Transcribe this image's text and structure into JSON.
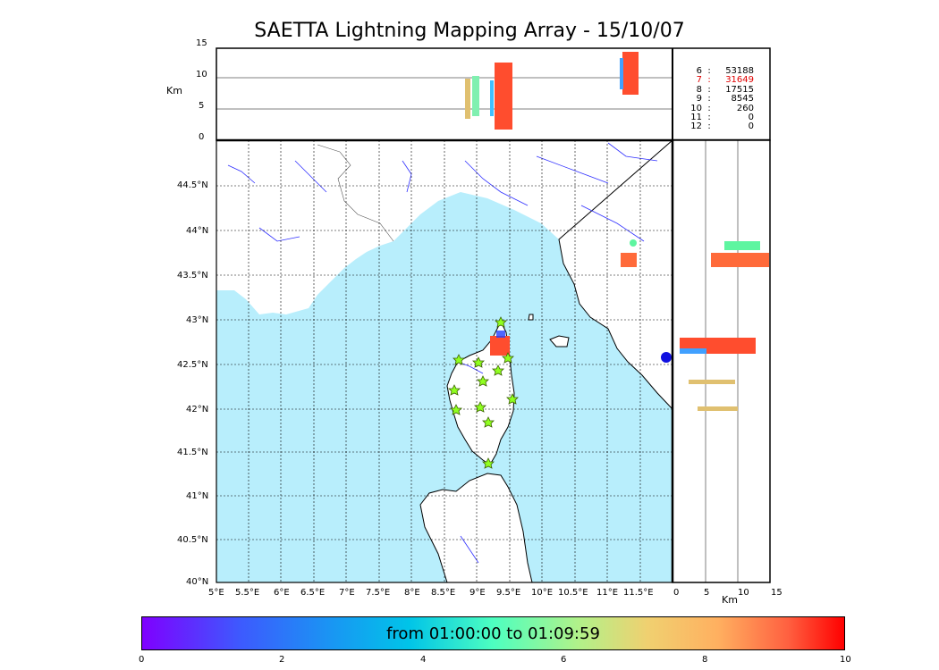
{
  "title": "SAETTA Lightning Mapping Array - 15/10/07",
  "altitude_panel": {
    "ylabel": "Km",
    "y_ticks": [
      "15",
      "10",
      "5",
      "0"
    ]
  },
  "side_panel": {
    "xlabel": "Km",
    "x_ticks": [
      "0",
      "5",
      "10",
      "15"
    ]
  },
  "map": {
    "lon_ticks": [
      "5°E",
      "5.5°E",
      "6°E",
      "6.5°E",
      "7°E",
      "7.5°E",
      "8°E",
      "8.5°E",
      "9°E",
      "9.5°E",
      "10°E",
      "10.5°E",
      "11°E",
      "11.5°E"
    ],
    "lat_ticks": [
      "44.5°N",
      "44°N",
      "43.5°N",
      "43°N",
      "42.5°N",
      "42°N",
      "41.5°N",
      "41°N",
      "40.5°N",
      "40°N"
    ],
    "sea_color": "#b8eefc",
    "land_color": "#ffffff",
    "river_color": "#3030ff",
    "grid_style": "dotted"
  },
  "station_counts": [
    {
      "stations": "6",
      "sep": ":",
      "count": "53188",
      "color": "#000000"
    },
    {
      "stations": "7",
      "sep": ":",
      "count": "31649",
      "color": "#e00000"
    },
    {
      "stations": "8",
      "sep": ":",
      "count": "17515",
      "color": "#000000"
    },
    {
      "stations": "9",
      "sep": ":",
      "count": "8545",
      "color": "#000000"
    },
    {
      "stations": "10",
      "sep": ":",
      "count": "260",
      "color": "#000000"
    },
    {
      "stations": "11",
      "sep": ":",
      "count": "0",
      "color": "#000000"
    },
    {
      "stations": "12",
      "sep": ":",
      "count": "0",
      "color": "#000000"
    }
  ],
  "colorbar": {
    "label": "from 01:00:00 to 01:09:59",
    "ticks": [
      "0",
      "2",
      "4",
      "6",
      "8",
      "10"
    ],
    "range": [
      0,
      10
    ]
  },
  "stations_marker": "star-icon"
}
